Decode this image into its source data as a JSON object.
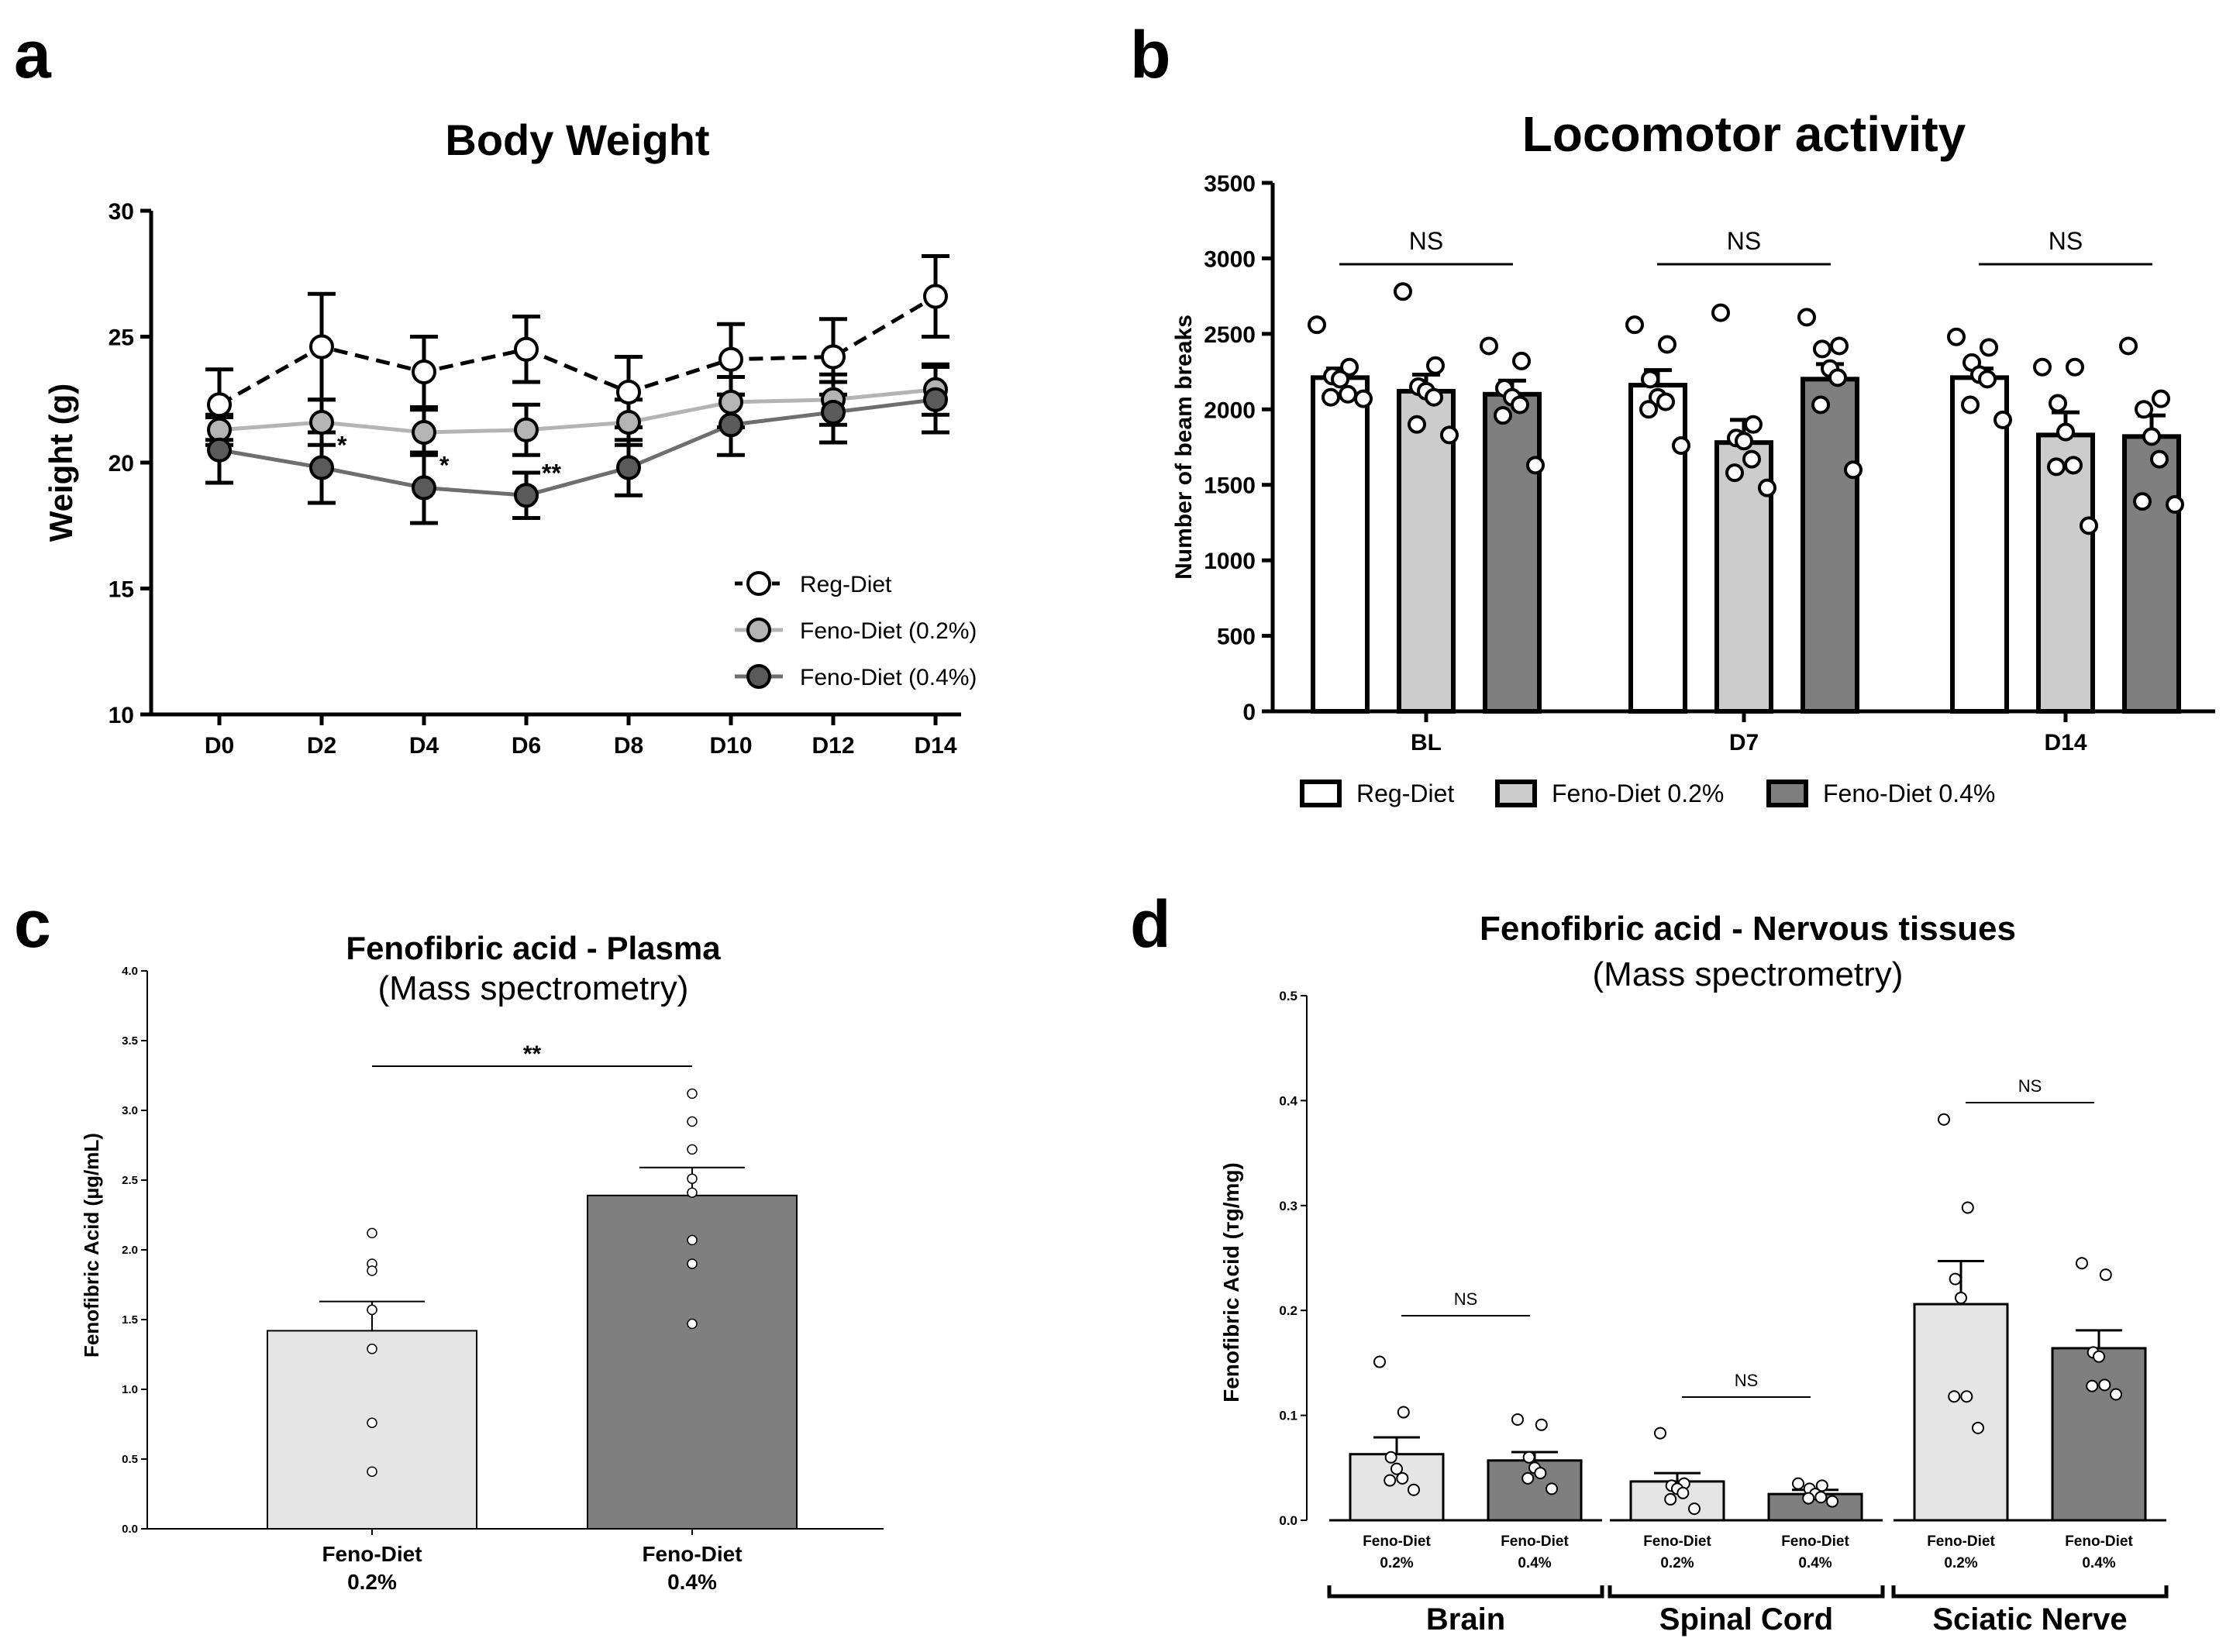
{
  "chart_data": [
    {
      "panel": "a",
      "type": "line",
      "title": "Body Weight",
      "xlabel": "",
      "ylabel": "Weight (g)",
      "ylim": [
        10,
        30
      ],
      "yticks": [
        "10",
        "15",
        "20",
        "25",
        "30"
      ],
      "categories": [
        "D0",
        "D2",
        "D4",
        "D6",
        "D8",
        "D10",
        "D12",
        "D14"
      ],
      "series": [
        {
          "name": "Reg-Diet",
          "values": [
            22.3,
            24.6,
            23.6,
            24.5,
            22.8,
            24.1,
            24.2,
            26.6
          ],
          "errors": [
            1.4,
            2.1,
            1.4,
            1.3,
            1.4,
            1.4,
            1.5,
            1.6
          ],
          "fill": "#ffffff",
          "line": "#000000",
          "dashed": true
        },
        {
          "name": "Feno-Diet (0.2%)",
          "values": [
            21.3,
            21.6,
            21.2,
            21.3,
            21.6,
            22.4,
            22.5,
            22.9
          ],
          "errors": [
            0.6,
            0.9,
            0.9,
            1.0,
            0.9,
            1.0,
            1.0,
            1.0
          ],
          "fill": "#b4b4b4",
          "line": "#b4b4b4",
          "dashed": false
        },
        {
          "name": "Feno-Diet (0.4%)",
          "values": [
            20.5,
            19.8,
            19.0,
            18.7,
            19.8,
            21.5,
            22.0,
            22.5
          ],
          "errors": [
            1.3,
            1.4,
            1.4,
            0.9,
            1.1,
            1.2,
            1.2,
            1.3
          ],
          "fill": "#5a5a5a",
          "line": "#6e6e6e",
          "dashed": false
        }
      ],
      "annotations": [
        {
          "category": "D2",
          "label": "*"
        },
        {
          "category": "D4",
          "label": "*"
        },
        {
          "category": "D6",
          "label": "**"
        }
      ],
      "legend_position": "bottom-right"
    },
    {
      "panel": "b",
      "type": "bar",
      "title": "Locomotor activity",
      "ylabel": "Number of beam breaks",
      "ylim": [
        0,
        3500
      ],
      "yticks": [
        "0",
        "500",
        "1000",
        "1500",
        "2000",
        "2500",
        "3000",
        "3500"
      ],
      "categories": [
        "BL",
        "D7",
        "D14"
      ],
      "series": [
        {
          "name": "Reg-Diet",
          "values": [
            2210,
            2160,
            2210
          ],
          "errors": [
            60,
            100,
            60
          ],
          "color": "#ffffff",
          "points": [
            [
              2560,
              2280,
              2220,
              2200,
              2100,
              2080,
              2070
            ],
            [
              2560,
              2430,
              2200,
              2080,
              2050,
              2000,
              1760
            ],
            [
              2480,
              2410,
              2310,
              2230,
              2200,
              2030,
              1930
            ]
          ]
        },
        {
          "name": "Feno-Diet 0.2%",
          "values": [
            2120,
            1780,
            1830
          ],
          "errors": [
            110,
            150,
            150
          ],
          "color": "#cccccc",
          "points": [
            [
              2780,
              2290,
              2150,
              2120,
              2080,
              1900,
              1830
            ],
            [
              2640,
              1900,
              1810,
              1790,
              1670,
              1580,
              1480
            ],
            [
              2280,
              2280,
              2040,
              1850,
              1630,
              1620,
              1230
            ]
          ]
        },
        {
          "name": "Feno-Diet 0.4%",
          "values": [
            2100,
            2200,
            1820
          ],
          "errors": [
            90,
            100,
            140
          ],
          "color": "#7f7f7f",
          "points": [
            [
              2420,
              2320,
              2140,
              2080,
              2030,
              1960,
              1630
            ],
            [
              2610,
              2420,
              2400,
              2270,
              2210,
              2030,
              1600
            ],
            [
              2420,
              2070,
              2000,
              1820,
              1670,
              1390,
              1370
            ]
          ]
        }
      ],
      "significance": [
        "NS",
        "NS",
        "NS"
      ],
      "legend_position": "bottom"
    },
    {
      "panel": "c",
      "type": "bar",
      "title": "Fenofibric acid - Plasma",
      "subtitle": "(Mass spectrometry)",
      "ylabel": "Fenofibric Acid (µg/mL)",
      "ylim": [
        0,
        4
      ],
      "yticks": [
        "0.0",
        "0.5",
        "1.0",
        "1.5",
        "2.0",
        "2.5",
        "3.0",
        "3.5",
        "4.0"
      ],
      "categories": [
        {
          "line1": "Feno-Diet",
          "line2": "0.2%"
        },
        {
          "line1": "Feno-Diet",
          "line2": "0.4%"
        }
      ],
      "values": [
        1.42,
        2.39
      ],
      "errors": [
        0.21,
        0.2
      ],
      "colors": [
        "#e5e5e5",
        "#7f7f7f"
      ],
      "points": [
        [
          2.12,
          1.9,
          1.85,
          1.57,
          1.57,
          1.29,
          0.76,
          0.41
        ],
        [
          3.12,
          2.92,
          2.72,
          2.51,
          2.41,
          2.07,
          1.9,
          1.47
        ]
      ],
      "significance": "**"
    },
    {
      "panel": "d",
      "type": "bar",
      "title": "Fenofibric acid - Nervous tissues",
      "subtitle": "(Mass spectrometry)",
      "ylabel": "Fenofibric Acid (тg/mg)",
      "ylim": [
        0,
        0.5
      ],
      "yticks": [
        "0.0",
        "0.1",
        "0.2",
        "0.3",
        "0.4",
        "0.5"
      ],
      "group_labels": [
        "Brain",
        "Spinal Cord",
        "Sciatic Nerve"
      ],
      "bar_labels": [
        {
          "line1": "Feno-Diet",
          "line2": "0.2%"
        },
        {
          "line1": "Feno-Diet",
          "line2": "0.4%"
        }
      ],
      "groups": [
        {
          "values": [
            0.063,
            0.057
          ],
          "errors": [
            0.016,
            0.008
          ],
          "points": [
            [
              0.151,
              0.103,
              0.06,
              0.049,
              0.04,
              0.038,
              0.029
            ],
            [
              0.096,
              0.091,
              0.06,
              0.05,
              0.045,
              0.04,
              0.03
            ]
          ]
        },
        {
          "values": [
            0.037,
            0.025
          ],
          "errors": [
            0.008,
            0.004
          ],
          "points": [
            [
              0.083,
              0.035,
              0.033,
              0.03,
              0.026,
              0.02,
              0.011
            ],
            [
              0.035,
              0.033,
              0.03,
              0.025,
              0.022,
              0.021,
              0.018
            ]
          ]
        },
        {
          "values": [
            0.206,
            0.164
          ],
          "errors": [
            0.041,
            0.017
          ],
          "points": [
            [
              0.382,
              0.298,
              0.23,
              0.212,
              0.118,
              0.118,
              0.088
            ],
            [
              0.245,
              0.234,
              0.16,
              0.156,
              0.129,
              0.128,
              0.12
            ]
          ]
        }
      ],
      "colors": [
        "#e5e5e5",
        "#7f7f7f"
      ],
      "significance": [
        "NS",
        "NS",
        "NS"
      ]
    }
  ],
  "panel_letters": [
    "a",
    "b",
    "c",
    "d"
  ]
}
